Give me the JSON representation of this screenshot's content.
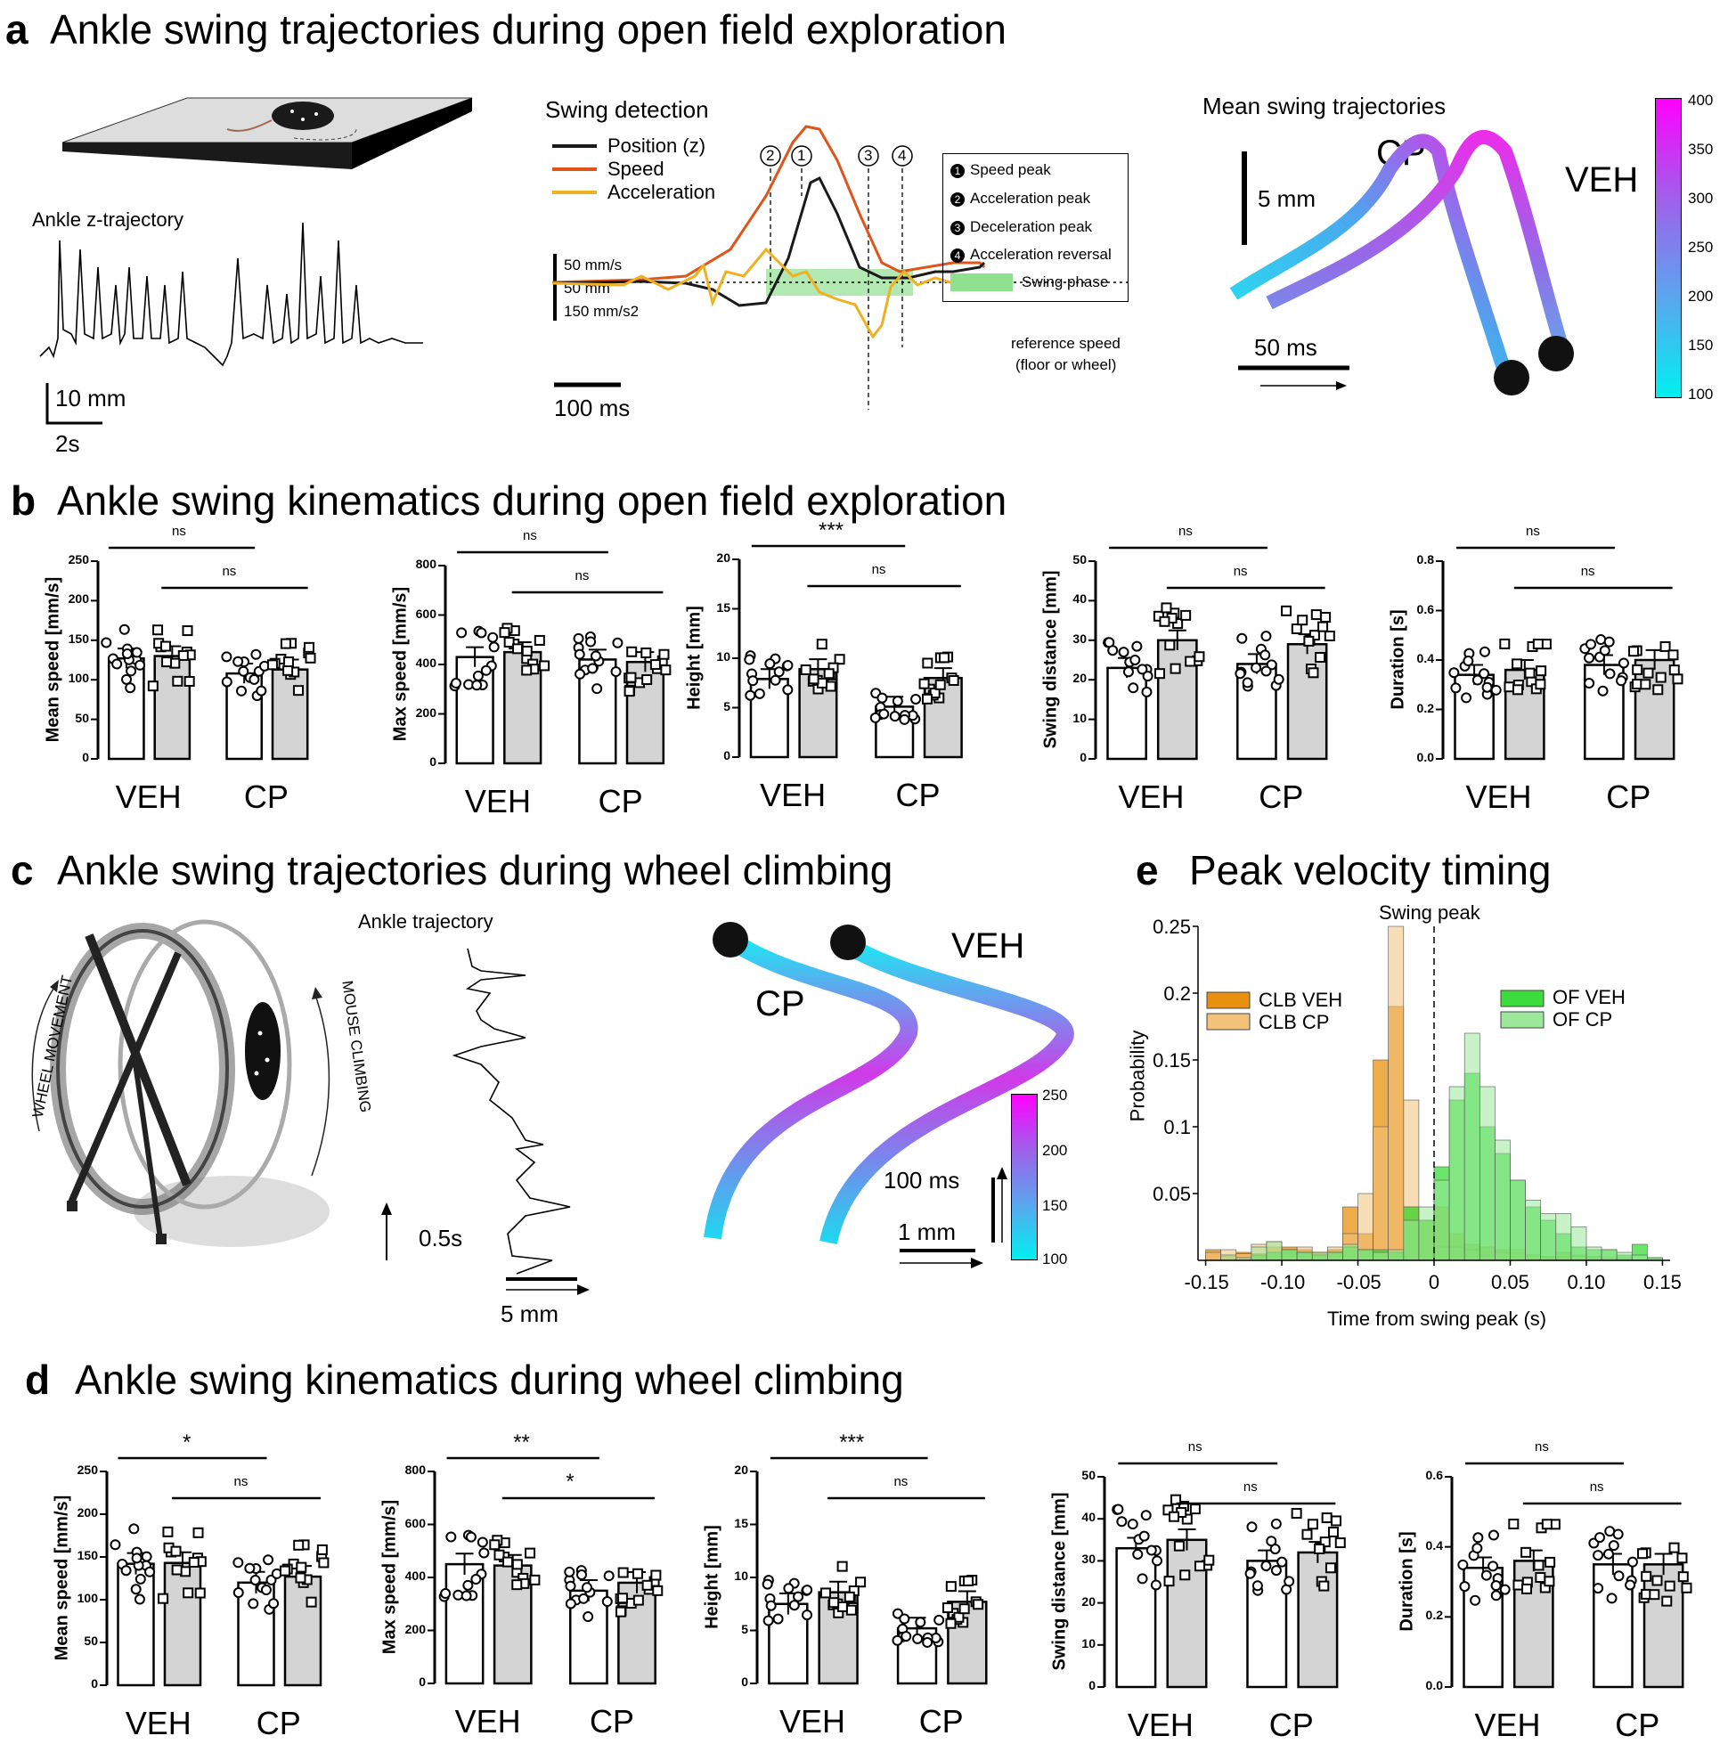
{
  "panel_a": {
    "letter": "a",
    "title": "Ankle swing trajectories during open field exploration",
    "ankle_label": "Ankle z-trajectory",
    "scale_mm": "10 mm",
    "scale_s": "2s",
    "swing_detection": {
      "title": "Swing detection",
      "legend": [
        "Position (z)",
        "Speed",
        "Acceleration"
      ],
      "legend_colors": [
        "#1a1a1a",
        "#e0541a",
        "#f0b020"
      ],
      "scale_text": [
        "50 mm/s",
        "50 mm",
        "150 mm/s2"
      ],
      "time_scale": "100 ms",
      "ref_speed": [
        "reference speed",
        "(floor or wheel)"
      ],
      "markers": [
        "2",
        "1",
        "3",
        "4"
      ],
      "key": [
        {
          "num": "1",
          "text": "Speed peak"
        },
        {
          "num": "2",
          "text": "Acceleration peak"
        },
        {
          "num": "3",
          "text": "Deceleration peak"
        },
        {
          "num": "4",
          "text": "Acceleration reversal"
        }
      ],
      "swing_phase": "Swing phase"
    },
    "mean_traj": {
      "title": "Mean swing trajectories",
      "cp": "CP",
      "veh": "VEH",
      "scale_mm": "5 mm",
      "scale_ms": "50 ms",
      "colorbar_ticks": [
        "400",
        "350",
        "300",
        "250",
        "200",
        "150",
        "100"
      ]
    }
  },
  "panel_b": {
    "letter": "b",
    "title": "Ankle swing kinematics during open field exploration",
    "categories": [
      "VEH",
      "CP"
    ],
    "sig_labels": [
      [
        "ns",
        "ns"
      ],
      [
        "ns",
        "ns"
      ],
      [
        "***",
        "ns"
      ],
      [
        "ns",
        "ns"
      ],
      [
        "ns",
        "ns"
      ]
    ],
    "ylabels": [
      "Mean speed [mm/s]",
      "Max speed [mm/s]",
      "Height [mm]",
      "Swing distance  [mm]",
      "Duration [s]"
    ],
    "yticks": [
      [
        "250",
        "200",
        "150",
        "100",
        "50",
        "0"
      ],
      [
        "800",
        "600",
        "400",
        "200",
        "0"
      ],
      [
        "20",
        "15",
        "10",
        "5",
        "0"
      ],
      [
        "50",
        "40",
        "30",
        "20",
        "10",
        "0"
      ],
      [
        "0.8",
        "0.6",
        "0.4",
        "0.2",
        "0.0"
      ]
    ]
  },
  "panel_c": {
    "letter": "c",
    "title": "Ankle swing trajectories during wheel climbing",
    "wheel_movement": "WHEEL MOVEMENT",
    "mouse_climbing": "MOUSE CLIMBING",
    "ankle_traj": "Ankle trajectory",
    "scale_s": "0.5s",
    "scale_mm": "5 mm",
    "cp": "CP",
    "veh": "VEH",
    "scale_ms": "100 ms",
    "scale_1mm": "1 mm",
    "colorbar_ticks": [
      "250",
      "200",
      "150",
      "100"
    ]
  },
  "panel_e": {
    "letter": "e",
    "title": "Peak velocity timing",
    "swing_peak": "Swing peak",
    "ylabel": "Probability",
    "xlabel": "Time from swing peak (s)",
    "yticks": [
      "0.25",
      "0.2",
      "0.15",
      "0.1",
      "0.05"
    ],
    "xticks": [
      "-0.15",
      "-0.10",
      "-0.05",
      "0",
      "0.05",
      "0.10",
      "0.15"
    ],
    "legend": [
      "CLB VEH",
      "CLB CP",
      "OF VEH",
      "OF CP"
    ],
    "legend_colors": [
      "#e8900f",
      "#f3c27a",
      "#3bdc3b",
      "#9be89b"
    ]
  },
  "panel_d": {
    "letter": "d",
    "title": "Ankle swing kinematics during wheel climbing",
    "categories": [
      "VEH",
      "CP"
    ],
    "sig_labels": [
      [
        "*",
        "ns"
      ],
      [
        "**",
        "*"
      ],
      [
        "***",
        "ns"
      ],
      [
        "ns",
        "ns"
      ],
      [
        "ns",
        "ns"
      ]
    ],
    "ylabels": [
      "Mean speed [mm/s]",
      "Max speed [mm/s]",
      "Height [mm]",
      "Swing distance  [mm]",
      "Duration [s]"
    ],
    "yticks": [
      [
        "250",
        "200",
        "150",
        "100",
        "50",
        "0"
      ],
      [
        "800",
        "600",
        "400",
        "200",
        "0"
      ],
      [
        "20",
        "15",
        "10",
        "5",
        "0"
      ],
      [
        "50",
        "40",
        "30",
        "20",
        "10",
        "0"
      ],
      [
        "0.6",
        "0.4",
        "0.2",
        "0.0"
      ]
    ]
  },
  "chart_data": [
    {
      "type": "bar",
      "panel": "b",
      "ylabel": "Mean speed [mm/s]",
      "ylim": [
        0,
        250
      ],
      "categories": [
        "VEH",
        "VEH",
        "CP",
        "CP"
      ],
      "values": [
        127,
        130,
        108,
        113
      ]
    },
    {
      "type": "bar",
      "panel": "b",
      "ylabel": "Max speed [mm/s]",
      "ylim": [
        0,
        800
      ],
      "categories": [
        "VEH",
        "VEH",
        "CP",
        "CP"
      ],
      "values": [
        430,
        450,
        420,
        410
      ]
    },
    {
      "type": "bar",
      "panel": "b",
      "ylabel": "Height [mm]",
      "ylim": [
        0,
        20
      ],
      "categories": [
        "VEH",
        "VEH",
        "CP",
        "CP"
      ],
      "values": [
        7.9,
        8.9,
        5.1,
        8.0
      ]
    },
    {
      "type": "bar",
      "panel": "b",
      "ylabel": "Swing distance  [mm]",
      "ylim": [
        0,
        50
      ],
      "categories": [
        "VEH",
        "VEH",
        "CP",
        "CP"
      ],
      "values": [
        23,
        30,
        24,
        29
      ]
    },
    {
      "type": "bar",
      "panel": "b",
      "ylabel": "Duration [s]",
      "ylim": [
        0,
        0.8
      ],
      "categories": [
        "VEH",
        "VEH",
        "CP",
        "CP"
      ],
      "values": [
        0.34,
        0.36,
        0.38,
        0.4
      ]
    },
    {
      "type": "bar",
      "panel": "d",
      "ylabel": "Mean speed [mm/s]",
      "ylim": [
        0,
        250
      ],
      "categories": [
        "VEH",
        "VEH",
        "CP",
        "CP"
      ],
      "values": [
        142,
        143,
        120,
        127
      ]
    },
    {
      "type": "bar",
      "panel": "d",
      "ylabel": "Max speed [mm/s]",
      "ylim": [
        0,
        800
      ],
      "categories": [
        "VEH",
        "VEH",
        "CP",
        "CP"
      ],
      "values": [
        450,
        445,
        350,
        380
      ]
    },
    {
      "type": "bar",
      "panel": "d",
      "ylabel": "Height [mm]",
      "ylim": [
        0,
        20
      ],
      "categories": [
        "VEH",
        "VEH",
        "CP",
        "CP"
      ],
      "values": [
        7.5,
        8.6,
        5.2,
        7.7
      ]
    },
    {
      "type": "bar",
      "panel": "d",
      "ylabel": "Swing distance  [mm]",
      "ylim": [
        0,
        50
      ],
      "categories": [
        "VEH",
        "VEH",
        "CP",
        "CP"
      ],
      "values": [
        33,
        35,
        30,
        32
      ]
    },
    {
      "type": "bar",
      "panel": "d",
      "ylabel": "Duration [s]",
      "ylim": [
        0,
        0.6
      ],
      "categories": [
        "VEH",
        "VEH",
        "CP",
        "CP"
      ],
      "values": [
        0.34,
        0.36,
        0.35,
        0.35
      ]
    },
    {
      "type": "bar",
      "panel": "e",
      "xlabel": "Time from swing peak (s)",
      "ylabel": "Probability",
      "xlim": [
        -0.15,
        0.15
      ],
      "ylim": [
        0,
        0.25
      ],
      "x": [
        -0.145,
        -0.135,
        -0.125,
        -0.115,
        -0.105,
        -0.095,
        -0.085,
        -0.075,
        -0.065,
        -0.055,
        -0.045,
        -0.035,
        -0.025,
        -0.015,
        -0.005,
        0.005,
        0.015,
        0.025,
        0.035,
        0.045,
        0.055,
        0.065,
        0.075,
        0.085,
        0.095,
        0.105,
        0.115,
        0.125,
        0.135,
        0.145
      ],
      "series": [
        {
          "name": "CLB VEH",
          "values": [
            0.008,
            0.003,
            0.006,
            0.005,
            0.01,
            0.01,
            0.008,
            0.006,
            0.008,
            0.04,
            0.02,
            0.15,
            0.19,
            0.04,
            0.03,
            0.04,
            0.02,
            0.012,
            0.01,
            0.008,
            0.006,
            0.004,
            0.003,
            0.006,
            0.004,
            0.003,
            0.002,
            0.002,
            0,
            0
          ]
        },
        {
          "name": "CLB CP",
          "values": [
            0.006,
            0.008,
            0.005,
            0.012,
            0.014,
            0.006,
            0.01,
            0.004,
            0.01,
            0.02,
            0.05,
            0.1,
            0.25,
            0.12,
            0.03,
            0.01,
            0.01,
            0.008,
            0.004,
            0.006,
            0.008,
            0.004,
            0.002,
            0.002,
            0.003,
            0.002,
            0,
            0,
            0,
            0
          ]
        },
        {
          "name": "OF VEH",
          "values": [
            0,
            0,
            0,
            0.004,
            0.006,
            0.008,
            0.006,
            0.004,
            0.006,
            0.01,
            0.008,
            0.008,
            0.006,
            0.04,
            0.03,
            0.07,
            0.12,
            0.14,
            0.1,
            0.08,
            0.06,
            0.04,
            0.03,
            0.02,
            0.01,
            0.008,
            0.008,
            0.004,
            0.012,
            0.002
          ]
        },
        {
          "name": "OF CP",
          "values": [
            0,
            0.004,
            0.002,
            0.01,
            0.014,
            0.008,
            0.006,
            0.006,
            0.006,
            0.012,
            0.008,
            0.006,
            0.008,
            0.03,
            0.04,
            0.06,
            0.13,
            0.17,
            0.13,
            0.09,
            0.06,
            0.045,
            0.035,
            0.035,
            0.025,
            0.01,
            0.008,
            0.006,
            0.004,
            0.002
          ]
        }
      ]
    }
  ]
}
